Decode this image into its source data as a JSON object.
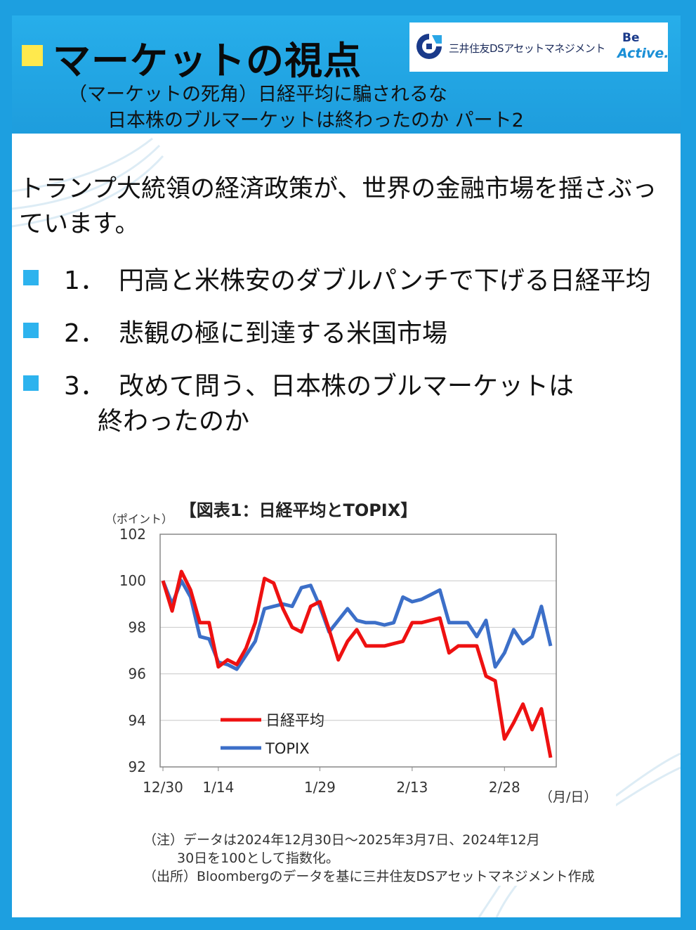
{
  "header": {
    "title": "マーケットの視点",
    "subtitle_line1": "（マーケットの死角）日経平均に騙されるな",
    "subtitle_line2": "日本株のブルマーケットは終わったのか パート2",
    "logo_company": "三井住友DSアセットマネジメント",
    "logo_be": "Be",
    "logo_active": "Active."
  },
  "lead": "トランプ大統領の経済政策が、世界の金融市場を揺さぶっています。",
  "bullets": [
    {
      "num": "1．",
      "line1": "円高と米株安のダブルパンチで下げる日経平均",
      "line2": ""
    },
    {
      "num": "2．",
      "line1": "悲観の極に到達する米国市場",
      "line2": ""
    },
    {
      "num": "3．",
      "line1": "改めて問う、日本株のブルマーケットは",
      "line2": "終わったのか"
    }
  ],
  "colors": {
    "frame": "#1d9fe0",
    "accent_square": "#ffe94d",
    "bullet": "#2db3ee",
    "nikkei": "#ee1111",
    "topix": "#3c6fc8"
  },
  "chart_data": {
    "type": "line",
    "title": "【図表1：日経平均とTOPIX】",
    "ylabel": "（ポイント）",
    "xlabel": "（月/日）",
    "ylim": [
      92,
      102
    ],
    "yticks": [
      "92",
      "94",
      "96",
      "98",
      "100",
      "102"
    ],
    "xticks": [
      "12/30",
      "1/14",
      "1/29",
      "2/13",
      "2/28"
    ],
    "x": [
      "12/30",
      "1/6",
      "1/7",
      "1/8",
      "1/9",
      "1/10",
      "1/14",
      "1/15",
      "1/16",
      "1/17",
      "1/20",
      "1/21",
      "1/22",
      "1/23",
      "1/24",
      "1/27",
      "1/28",
      "1/29",
      "1/30",
      "1/31",
      "2/3",
      "2/4",
      "2/5",
      "2/6",
      "2/7",
      "2/10",
      "2/12",
      "2/13",
      "2/14",
      "2/17",
      "2/18",
      "2/19",
      "2/20",
      "2/21",
      "2/25",
      "2/26",
      "2/27",
      "2/28",
      "3/3",
      "3/4",
      "3/5",
      "3/6",
      "3/7"
    ],
    "series": [
      {
        "name": "日経平均",
        "color": "#ee1111",
        "values": [
          100.0,
          98.7,
          100.4,
          99.6,
          98.2,
          98.2,
          96.3,
          96.6,
          96.4,
          97.1,
          98.2,
          100.1,
          99.9,
          98.8,
          98.0,
          97.8,
          98.9,
          99.1,
          97.9,
          96.6,
          97.4,
          97.9,
          97.2,
          97.2,
          97.2,
          97.3,
          97.4,
          98.2,
          98.2,
          98.3,
          98.4,
          96.9,
          97.2,
          97.2,
          97.2,
          95.9,
          95.7,
          93.2,
          93.9,
          94.7,
          93.6,
          94.5,
          92.4
        ]
      },
      {
        "name": "TOPIX",
        "color": "#3c6fc8",
        "values": [
          100.0,
          99.0,
          100.0,
          99.3,
          97.6,
          97.5,
          96.5,
          96.4,
          96.2,
          96.8,
          97.4,
          98.8,
          98.9,
          99.0,
          98.9,
          99.7,
          99.8,
          98.9,
          97.8,
          98.3,
          98.8,
          98.3,
          98.2,
          98.2,
          98.1,
          98.2,
          99.3,
          99.1,
          99.2,
          99.4,
          99.6,
          98.2,
          98.2,
          98.2,
          97.6,
          98.3,
          96.3,
          96.9,
          97.9,
          97.3,
          97.6,
          98.9,
          97.2
        ]
      }
    ],
    "legend_position": "lower-left inside",
    "grid": true,
    "note_line1": "（注）データは2024年12月30日～2025年3月7日、2024年12月",
    "note_line2": "30日を100として指数化。",
    "source": "（出所）Bloombergのデータを基に三井住友DSアセットマネジメント作成"
  }
}
